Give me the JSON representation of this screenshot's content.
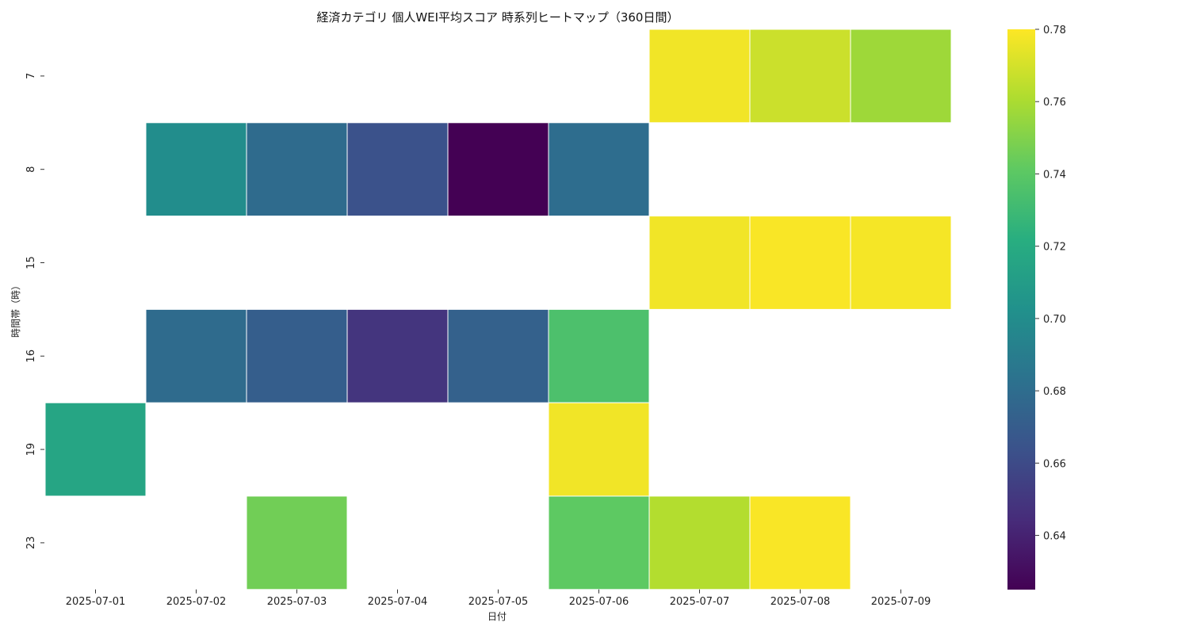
{
  "chart_data": {
    "type": "heatmap",
    "title": "経済カテゴリ 個人WEI平均スコア 時系列ヒートマップ（360日間）",
    "xlabel": "日付",
    "ylabel": "時間帯（時）",
    "x": [
      "2025-07-01",
      "2025-07-02",
      "2025-07-03",
      "2025-07-04",
      "2025-07-05",
      "2025-07-06",
      "2025-07-07",
      "2025-07-08",
      "2025-07-09"
    ],
    "y": [
      "7",
      "8",
      "15",
      "16",
      "19",
      "23"
    ],
    "values": [
      [
        null,
        null,
        null,
        null,
        null,
        null,
        0.777,
        0.768,
        0.757
      ],
      [
        null,
        0.7,
        0.679,
        0.664,
        0.625,
        0.68,
        null,
        null,
        null
      ],
      [
        null,
        null,
        null,
        null,
        null,
        null,
        0.777,
        0.779,
        0.778
      ],
      [
        null,
        0.679,
        0.671,
        0.649,
        0.673,
        0.735,
        null,
        null,
        null
      ],
      [
        0.716,
        null,
        null,
        null,
        null,
        0.777,
        null,
        null,
        null
      ],
      [
        null,
        null,
        0.746,
        null,
        null,
        0.741,
        0.762,
        0.779,
        null
      ]
    ],
    "colorscale": "viridis",
    "colorbar": {
      "range": [
        0.625,
        0.78
      ],
      "ticks": [
        "0.64",
        "0.66",
        "0.68",
        "0.70",
        "0.72",
        "0.74",
        "0.76",
        "0.78"
      ],
      "position": "right"
    },
    "grid": false
  }
}
